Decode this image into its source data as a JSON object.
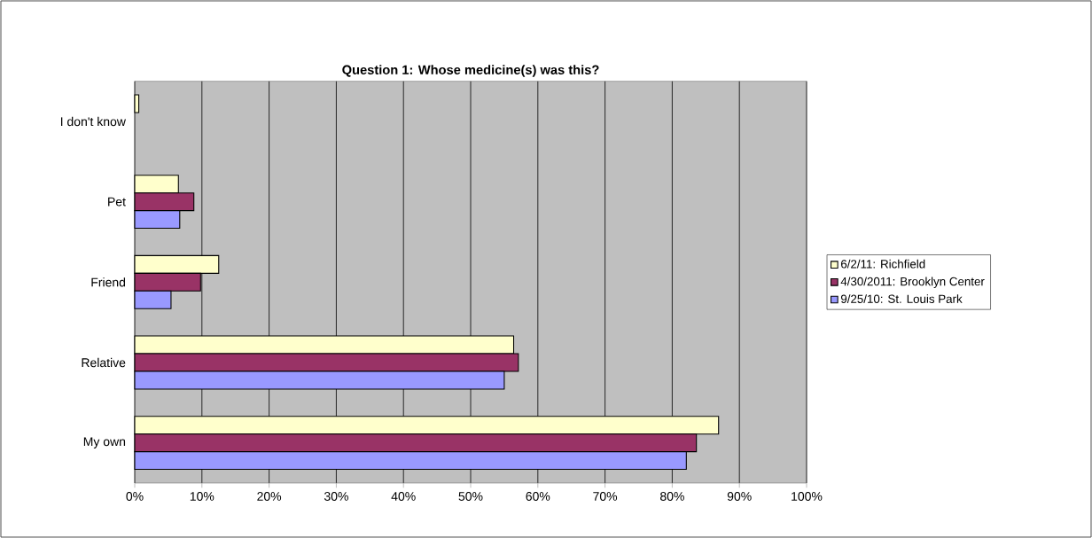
{
  "chart_data": {
    "type": "bar",
    "orientation": "horizontal",
    "title": "Question 1: Whose medicine(s) was this?",
    "categories": [
      "I don't know",
      "Pet",
      "Friend",
      "Relative",
      "My own"
    ],
    "series": [
      {
        "name": "6/2/11: Richfield",
        "color": "#ffffcc",
        "values": [
          0.6,
          6.5,
          12.5,
          56.4,
          86.9
        ]
      },
      {
        "name": "4/30/2011: Brooklyn Center",
        "color": "#993366",
        "values": [
          null,
          8.8,
          9.8,
          57.1,
          83.6
        ]
      },
      {
        "name": "9/25/10: St. Louis Park",
        "color": "#9999ff",
        "values": [
          null,
          6.7,
          5.4,
          55.0,
          82.1
        ]
      }
    ],
    "xlim": [
      0,
      100
    ],
    "xticks": [
      {
        "value": 0,
        "label": "0%"
      },
      {
        "value": 10,
        "label": "10%"
      },
      {
        "value": 20,
        "label": "20%"
      },
      {
        "value": 30,
        "label": "30%"
      },
      {
        "value": 40,
        "label": "40%"
      },
      {
        "value": 50,
        "label": "50%"
      },
      {
        "value": 60,
        "label": "60%"
      },
      {
        "value": 70,
        "label": "70%"
      },
      {
        "value": 80,
        "label": "80%"
      },
      {
        "value": 90,
        "label": "90%"
      },
      {
        "value": 100,
        "label": "100%"
      }
    ],
    "grid": "x",
    "legend": "right"
  }
}
